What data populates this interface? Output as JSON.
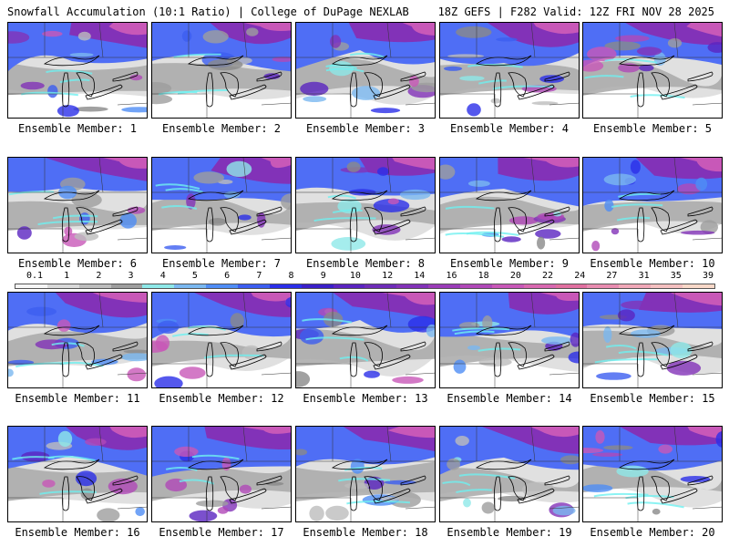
{
  "header": {
    "left": "Snowfall Accumulation (10:1 Ratio) | College of DuPage NEXLAB",
    "right": "18Z GEFS | F282 Valid: 12Z FRI NOV 28 2025"
  },
  "legend": {
    "ticks": [
      "0.1",
      "1",
      "2",
      "3",
      "4",
      "5",
      "6",
      "7",
      "8",
      "9",
      "10",
      "12",
      "14",
      "16",
      "18",
      "20",
      "22",
      "24",
      "27",
      "31",
      "35",
      "39"
    ],
    "colors": [
      "#f5f5f5",
      "#d9d9d9",
      "#bdbdbd",
      "#9e9e9e",
      "#8ee8e8",
      "#7ab8f0",
      "#4f8df5",
      "#3c5ef0",
      "#2a2ee8",
      "#3a1fc8",
      "#5a24c0",
      "#6e2cb8",
      "#8232b8",
      "#9a3cb8",
      "#b048b8",
      "#c858b8",
      "#d868b0",
      "#e070a0",
      "#e88cb0",
      "#f0a8b8",
      "#f4c0c0",
      "#f8d8c8"
    ]
  },
  "members": [
    {
      "label": "Ensemble Member: 1"
    },
    {
      "label": "Ensemble Member: 2"
    },
    {
      "label": "Ensemble Member: 3"
    },
    {
      "label": "Ensemble Member: 4"
    },
    {
      "label": "Ensemble Member: 5"
    },
    {
      "label": "Ensemble Member: 6"
    },
    {
      "label": "Ensemble Member: 7"
    },
    {
      "label": "Ensemble Member: 8"
    },
    {
      "label": "Ensemble Member: 9"
    },
    {
      "label": "Ensemble Member: 10"
    },
    {
      "label": "Ensemble Member: 11"
    },
    {
      "label": "Ensemble Member: 12"
    },
    {
      "label": "Ensemble Member: 13"
    },
    {
      "label": "Ensemble Member: 14"
    },
    {
      "label": "Ensemble Member: 15"
    },
    {
      "label": "Ensemble Member: 16"
    },
    {
      "label": "Ensemble Member: 17"
    },
    {
      "label": "Ensemble Member: 18"
    },
    {
      "label": "Ensemble Member: 19"
    },
    {
      "label": "Ensemble Member: 20"
    }
  ]
}
